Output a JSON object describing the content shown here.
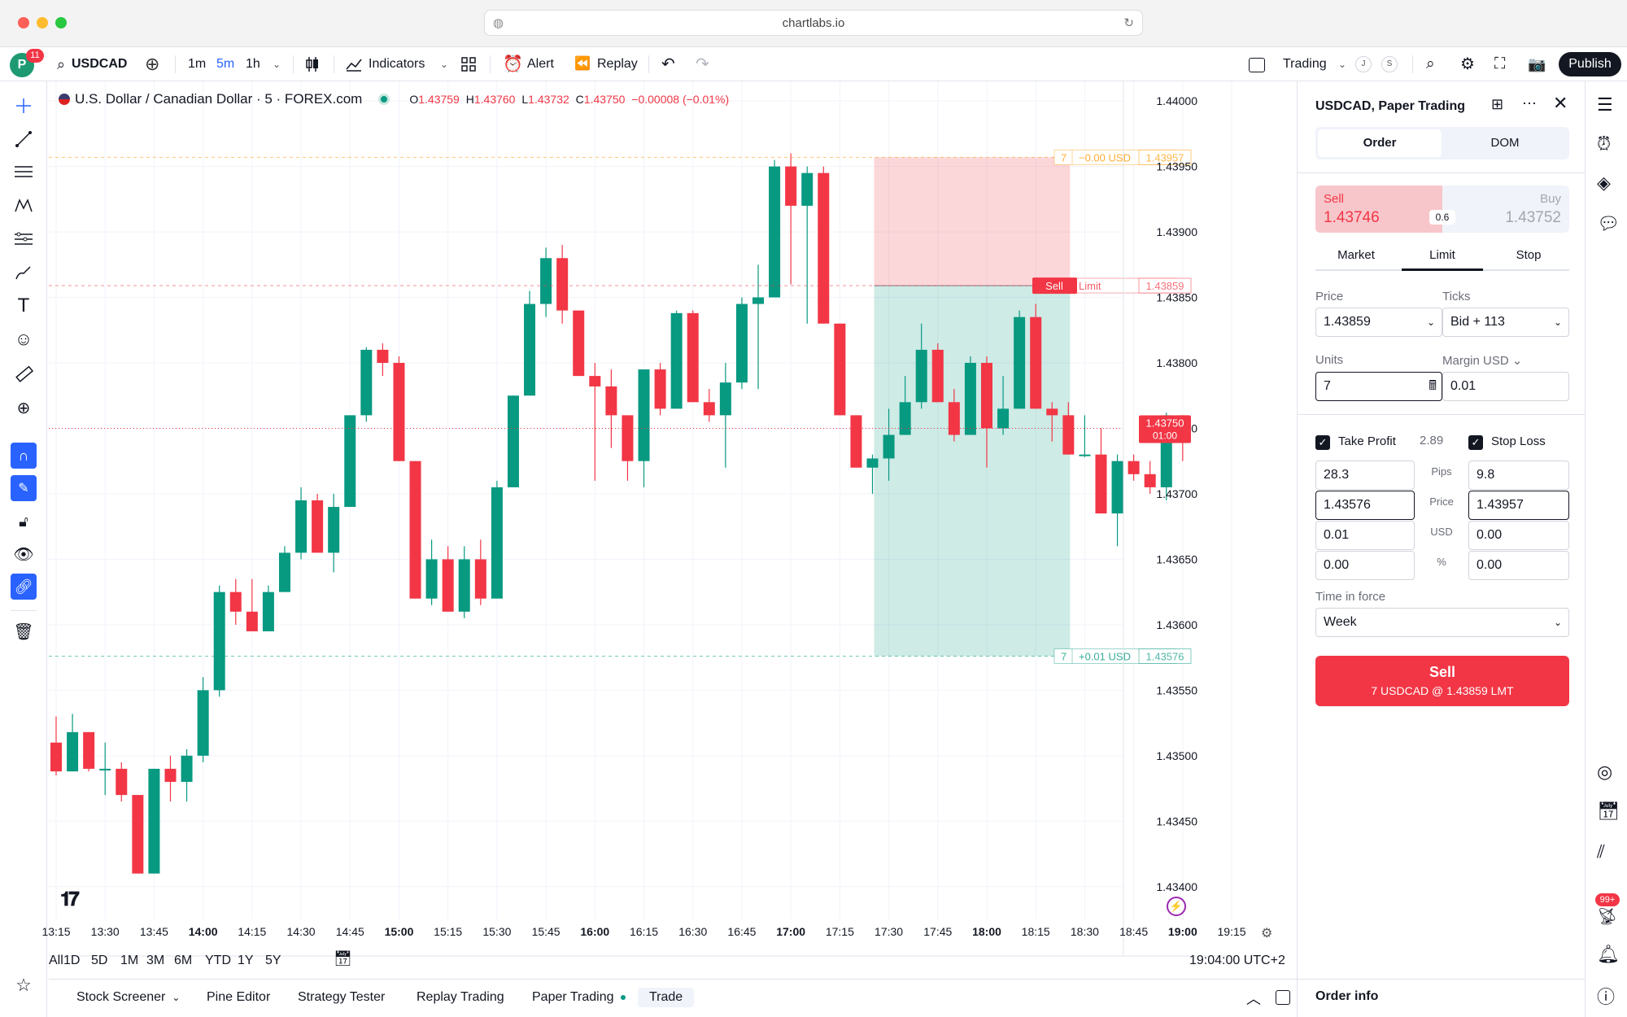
{
  "browser": {
    "url": "chartlabs.io"
  },
  "toolbar": {
    "avatar_letter": "P",
    "avatar_badge": "11",
    "symbol": "USDCAD",
    "intervals": [
      "1m",
      "5m",
      "1h"
    ],
    "active_interval": "5m",
    "indicators": "Indicators",
    "alert": "Alert",
    "replay": "Replay",
    "trading": "Trading",
    "badge_j": "J",
    "badge_s": "S",
    "publish": "Publish"
  },
  "legend": {
    "title": "U.S. Dollar / Canadian Dollar · 5 · FOREX.com",
    "o_label": "O",
    "o": "1.43759",
    "h_label": "H",
    "h": "1.43760",
    "l_label": "L",
    "l": "1.43732",
    "c_label": "C",
    "c": "1.43750",
    "change": "−0.00008 (−0.01%)"
  },
  "chart_data": {
    "type": "candlestick",
    "ylim": [
      1.43375,
      1.44015
    ],
    "y_ticks": [
      "1.44000",
      "1.43950",
      "1.43900",
      "1.43850",
      "1.43800",
      "1.43750",
      "1.43700",
      "1.43650",
      "1.43600",
      "1.43550",
      "1.43500",
      "1.43450",
      "1.43400"
    ],
    "x_ticks": [
      "13:15",
      "13:30",
      "13:45",
      "14:00",
      "14:15",
      "14:30",
      "14:45",
      "15:00",
      "15:15",
      "15:30",
      "15:45",
      "16:00",
      "16:15",
      "16:30",
      "16:45",
      "17:00",
      "17:15",
      "17:30",
      "17:45",
      "18:00",
      "18:15",
      "18:30",
      "18:45",
      "19:00",
      "19:15"
    ],
    "x_ticks_bold": [
      "14:00",
      "15:00",
      "16:00",
      "17:00",
      "18:00",
      "19:00"
    ],
    "colors": {
      "up": "#089981",
      "down": "#f23645"
    },
    "candles": [
      [
        "13:15",
        1.4351,
        1.4353,
        1.43485,
        1.43488
      ],
      [
        "13:20",
        1.43488,
        1.43532,
        1.43488,
        1.43518
      ],
      [
        "13:25",
        1.43518,
        1.43518,
        1.43488,
        1.4349
      ],
      [
        "13:30",
        1.4349,
        1.4351,
        1.4347,
        1.4349
      ],
      [
        "13:35",
        1.4349,
        1.43495,
        1.43465,
        1.4347
      ],
      [
        "13:40",
        1.4347,
        1.4347,
        1.4341,
        1.4341
      ],
      [
        "13:45",
        1.4341,
        1.4349,
        1.4341,
        1.4349
      ],
      [
        "13:50",
        1.4349,
        1.435,
        1.43465,
        1.4348
      ],
      [
        "13:55",
        1.4348,
        1.43505,
        1.43465,
        1.435
      ],
      [
        "14:00",
        1.435,
        1.4356,
        1.43495,
        1.4355
      ],
      [
        "14:05",
        1.4355,
        1.4363,
        1.43545,
        1.43625
      ],
      [
        "14:10",
        1.43625,
        1.43635,
        1.436,
        1.4361
      ],
      [
        "14:15",
        1.4361,
        1.43635,
        1.43595,
        1.43595
      ],
      [
        "14:20",
        1.43595,
        1.4363,
        1.43595,
        1.43625
      ],
      [
        "14:25",
        1.43625,
        1.4366,
        1.43625,
        1.43655
      ],
      [
        "14:30",
        1.43655,
        1.43705,
        1.4365,
        1.43695
      ],
      [
        "14:35",
        1.43695,
        1.437,
        1.43655,
        1.43655
      ],
      [
        "14:40",
        1.43655,
        1.437,
        1.4364,
        1.4369
      ],
      [
        "14:45",
        1.4369,
        1.4376,
        1.4369,
        1.4376
      ],
      [
        "14:50",
        1.4376,
        1.43812,
        1.43755,
        1.4381
      ],
      [
        "14:55",
        1.4381,
        1.43815,
        1.4379,
        1.438
      ],
      [
        "15:00",
        1.438,
        1.43805,
        1.43725,
        1.43725
      ],
      [
        "15:05",
        1.43725,
        1.43725,
        1.4362,
        1.4362
      ],
      [
        "15:10",
        1.4362,
        1.43665,
        1.43615,
        1.4365
      ],
      [
        "15:15",
        1.4365,
        1.4366,
        1.4361,
        1.4361
      ],
      [
        "15:20",
        1.4361,
        1.4366,
        1.43605,
        1.4365
      ],
      [
        "15:25",
        1.4365,
        1.43665,
        1.43615,
        1.4362
      ],
      [
        "15:30",
        1.4362,
        1.4371,
        1.4362,
        1.43705
      ],
      [
        "15:35",
        1.43705,
        1.43775,
        1.43705,
        1.43775
      ],
      [
        "15:40",
        1.43775,
        1.43855,
        1.43775,
        1.43845
      ],
      [
        "15:45",
        1.43845,
        1.43888,
        1.43835,
        1.4388
      ],
      [
        "15:50",
        1.4388,
        1.4389,
        1.4383,
        1.4384
      ],
      [
        "15:55",
        1.4384,
        1.4384,
        1.4379,
        1.4379
      ],
      [
        "16:00",
        1.4379,
        1.438,
        1.4371,
        1.43782
      ],
      [
        "16:05",
        1.43782,
        1.43795,
        1.43735,
        1.4376
      ],
      [
        "16:10",
        1.4376,
        1.4376,
        1.4371,
        1.43725
      ],
      [
        "16:15",
        1.43725,
        1.43795,
        1.43705,
        1.43795
      ],
      [
        "16:20",
        1.43795,
        1.438,
        1.4376,
        1.43765
      ],
      [
        "16:25",
        1.43765,
        1.4384,
        1.43765,
        1.43838
      ],
      [
        "16:30",
        1.43838,
        1.4384,
        1.4377,
        1.4377
      ],
      [
        "16:35",
        1.4377,
        1.4378,
        1.43755,
        1.4376
      ],
      [
        "16:40",
        1.4376,
        1.438,
        1.4372,
        1.43785
      ],
      [
        "16:45",
        1.43785,
        1.4385,
        1.4378,
        1.43845
      ],
      [
        "16:50",
        1.43845,
        1.43875,
        1.4378,
        1.4385
      ],
      [
        "16:55",
        1.4385,
        1.43955,
        1.4385,
        1.4395
      ],
      [
        "17:00",
        1.4395,
        1.4396,
        1.4386,
        1.4392
      ],
      [
        "17:05",
        1.4392,
        1.4395,
        1.4383,
        1.43945
      ],
      [
        "17:10",
        1.43945,
        1.4395,
        1.4383,
        1.4383
      ],
      [
        "17:15",
        1.4383,
        1.4383,
        1.4376,
        1.4376
      ],
      [
        "17:20",
        1.4376,
        1.4376,
        1.4372,
        1.4372
      ],
      [
        "17:25",
        1.4372,
        1.4373,
        1.437,
        1.43727
      ],
      [
        "17:30",
        1.43727,
        1.43765,
        1.4371,
        1.43745
      ],
      [
        "17:35",
        1.43745,
        1.4379,
        1.43745,
        1.4377
      ],
      [
        "17:40",
        1.4377,
        1.4383,
        1.43765,
        1.4381
      ],
      [
        "17:45",
        1.4381,
        1.43815,
        1.4377,
        1.4377
      ],
      [
        "17:50",
        1.4377,
        1.4378,
        1.4374,
        1.43745
      ],
      [
        "17:55",
        1.43745,
        1.43805,
        1.43745,
        1.438
      ],
      [
        "18:00",
        1.438,
        1.43805,
        1.4372,
        1.4375
      ],
      [
        "18:05",
        1.4375,
        1.4379,
        1.43745,
        1.43765
      ],
      [
        "18:10",
        1.43765,
        1.4384,
        1.43765,
        1.43835
      ],
      [
        "18:15",
        1.43835,
        1.43845,
        1.43765,
        1.43765
      ],
      [
        "18:20",
        1.43765,
        1.4377,
        1.4374,
        1.4376
      ],
      [
        "18:25",
        1.4376,
        1.4377,
        1.4373,
        1.4373
      ],
      [
        "18:30",
        1.4373,
        1.4376,
        1.43728,
        1.4373
      ],
      [
        "18:35",
        1.4373,
        1.4375,
        1.43685,
        1.43685
      ],
      [
        "18:40",
        1.43685,
        1.4373,
        1.4366,
        1.43725
      ],
      [
        "18:45",
        1.43725,
        1.4373,
        1.4371,
        1.43715
      ],
      [
        "18:50",
        1.43715,
        1.43725,
        1.437,
        1.43705
      ],
      [
        "18:55",
        1.43705,
        1.43762,
        1.43695,
        1.4376
      ],
      [
        "19:00",
        1.4376,
        1.4376,
        1.43725,
        1.4375
      ]
    ],
    "orders": [
      {
        "qty": "7",
        "label": "−0.00 USD",
        "price": "1.43957",
        "color": "#ff9800"
      },
      {
        "qty": "7",
        "label": "Limit",
        "price": "1.43859",
        "color": "#f23645",
        "tag": "Sell"
      },
      {
        "qty": "7",
        "label": "+0.01 USD",
        "price": "1.43576",
        "color": "#089981"
      }
    ],
    "last_price": "1.43750",
    "countdown": "01:00"
  },
  "timeframes": [
    "1D",
    "5D",
    "1M",
    "3M",
    "6M",
    "YTD",
    "1Y",
    "5Y",
    "All"
  ],
  "clock": "19:04:00 UTC+2",
  "bottom_tabs": [
    "Stock Screener",
    "Pine Editor",
    "Strategy Tester",
    "Replay Trading",
    "Paper Trading",
    "Trade"
  ],
  "order_panel": {
    "title": "USDCAD, Paper Trading",
    "tabs": [
      "Order",
      "DOM"
    ],
    "sell_label": "Sell",
    "sell_price": "1.43746",
    "spread": "0.6",
    "buy_label": "Buy",
    "buy_price": "1.43752",
    "order_types": [
      "Market",
      "Limit",
      "Stop"
    ],
    "price_label": "Price",
    "price_value": "1.43859",
    "ticks_label": "Ticks",
    "ticks_value": "Bid + 113",
    "units_label": "Units",
    "units_value": "7",
    "margin_label": "Margin USD",
    "margin_value": "0.01",
    "tp_label": "Take Profit",
    "rr": "2.89",
    "sl_label": "Stop Loss",
    "row_labels": [
      "Pips",
      "Price",
      "USD",
      "%"
    ],
    "tp_values": [
      "28.3",
      "1.43576",
      "0.01",
      "0.00"
    ],
    "sl_values": [
      "9.8",
      "1.43957",
      "0.00",
      "0.00"
    ],
    "tif_label": "Time in force",
    "tif_value": "Week",
    "submit_title": "Sell",
    "submit_sub": "7 USDCAD @ 1.43859 LMT",
    "order_info": "Order info"
  },
  "right_badge": "99+"
}
